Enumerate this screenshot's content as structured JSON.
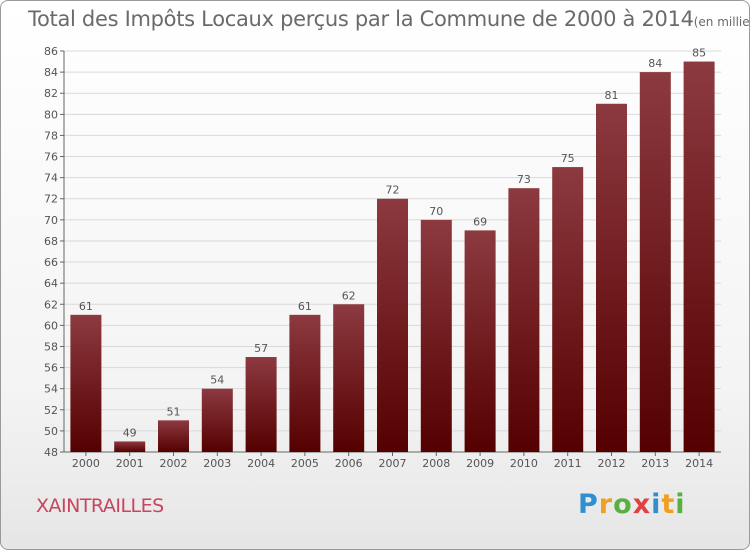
{
  "title": "Total des Impôts Locaux perçus par la Commune de 2000 à 2014",
  "title_unit": "(en milliers d'€)",
  "commune": "XAINTRAILLES",
  "logo_text": "Proxiti",
  "colors": {
    "bar_top": "#8c3a40",
    "bar_bottom": "#550000",
    "grid": "#d9d9d9",
    "axis": "#666666",
    "text": "#555555"
  },
  "chart_data": {
    "type": "bar",
    "categories": [
      "2000",
      "2001",
      "2002",
      "2003",
      "2004",
      "2005",
      "2006",
      "2007",
      "2008",
      "2009",
      "2010",
      "2011",
      "2012",
      "2013",
      "2014"
    ],
    "values": [
      61,
      49,
      51,
      54,
      57,
      61,
      62,
      72,
      70,
      69,
      73,
      75,
      81,
      84,
      85
    ],
    "title": "Total des Impôts Locaux perçus par la Commune de 2000 à 2014",
    "ylim": [
      48,
      86
    ],
    "yticks": [
      48,
      50,
      52,
      54,
      56,
      58,
      60,
      62,
      64,
      66,
      68,
      70,
      72,
      74,
      76,
      78,
      80,
      82,
      84,
      86
    ],
    "grid": true,
    "data_labels": true
  }
}
